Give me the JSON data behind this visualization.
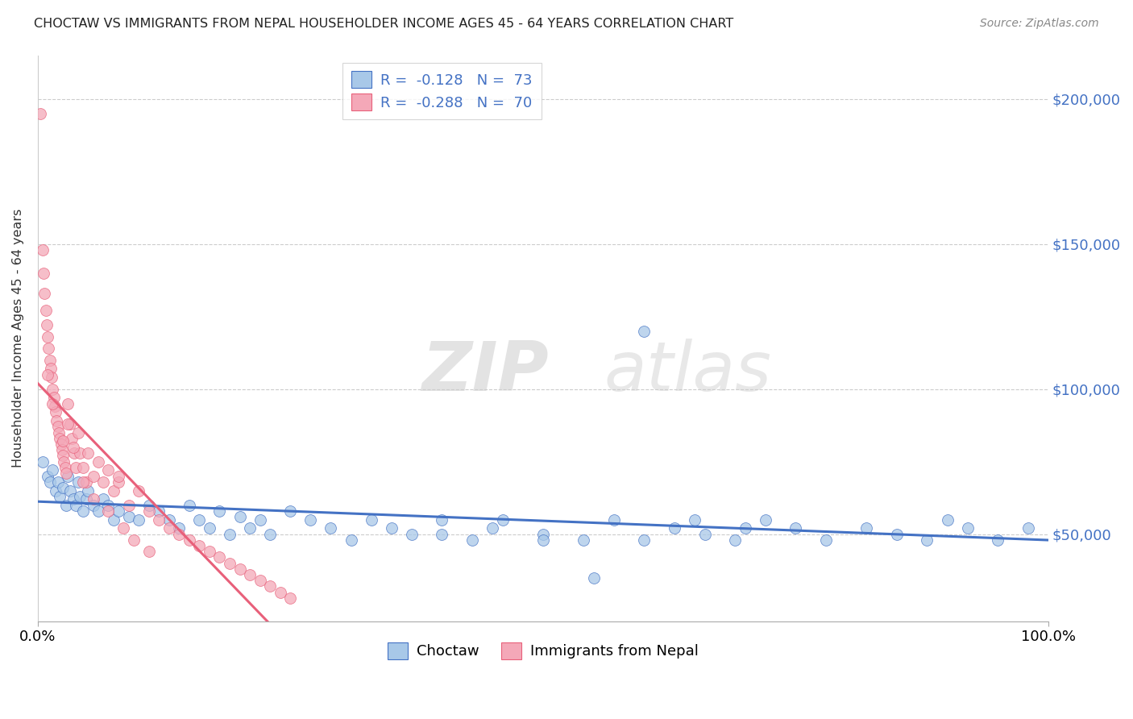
{
  "title": "CHOCTAW VS IMMIGRANTS FROM NEPAL HOUSEHOLDER INCOME AGES 45 - 64 YEARS CORRELATION CHART",
  "source": "Source: ZipAtlas.com",
  "ylabel": "Householder Income Ages 45 - 64 years",
  "legend_blue_r": "-0.128",
  "legend_blue_n": "73",
  "legend_pink_r": "-0.288",
  "legend_pink_n": "70",
  "legend_label_blue": "Choctaw",
  "legend_label_pink": "Immigrants from Nepal",
  "xlim": [
    0,
    100
  ],
  "ylim": [
    20000,
    215000
  ],
  "yticks": [
    50000,
    100000,
    150000,
    200000
  ],
  "ytick_labels": [
    "$50,000",
    "$100,000",
    "$150,000",
    "$200,000"
  ],
  "color_blue": "#A8C8E8",
  "color_pink": "#F4A8B8",
  "color_blue_line": "#4472C4",
  "color_pink_line": "#E8607A",
  "color_blue_text": "#4472C4",
  "color_ytick": "#4472C4",
  "blue_points_x": [
    0.5,
    1.0,
    1.2,
    1.5,
    1.8,
    2.0,
    2.2,
    2.5,
    2.8,
    3.0,
    3.2,
    3.5,
    3.8,
    4.0,
    4.2,
    4.5,
    4.8,
    5.0,
    5.5,
    6.0,
    6.5,
    7.0,
    7.5,
    8.0,
    9.0,
    10.0,
    11.0,
    12.0,
    13.0,
    14.0,
    15.0,
    16.0,
    17.0,
    18.0,
    19.0,
    20.0,
    21.0,
    22.0,
    23.0,
    25.0,
    27.0,
    29.0,
    31.0,
    33.0,
    35.0,
    37.0,
    40.0,
    43.0,
    46.0,
    50.0,
    54.0,
    57.0,
    60.0,
    63.0,
    66.0,
    69.0,
    72.0,
    75.0,
    78.0,
    82.0,
    85.0,
    88.0,
    90.0,
    92.0,
    95.0,
    98.0,
    60.0,
    65.0,
    70.0,
    55.0,
    50.0,
    45.0,
    40.0
  ],
  "blue_points_y": [
    75000,
    70000,
    68000,
    72000,
    65000,
    68000,
    63000,
    66000,
    60000,
    70000,
    65000,
    62000,
    60000,
    68000,
    63000,
    58000,
    62000,
    65000,
    60000,
    58000,
    62000,
    60000,
    55000,
    58000,
    56000,
    55000,
    60000,
    58000,
    55000,
    52000,
    60000,
    55000,
    52000,
    58000,
    50000,
    56000,
    52000,
    55000,
    50000,
    58000,
    55000,
    52000,
    48000,
    55000,
    52000,
    50000,
    55000,
    48000,
    55000,
    50000,
    48000,
    55000,
    48000,
    52000,
    50000,
    48000,
    55000,
    52000,
    48000,
    52000,
    50000,
    48000,
    55000,
    52000,
    48000,
    52000,
    120000,
    55000,
    52000,
    35000,
    48000,
    52000,
    50000
  ],
  "pink_points_x": [
    0.3,
    0.5,
    0.6,
    0.7,
    0.8,
    0.9,
    1.0,
    1.1,
    1.2,
    1.3,
    1.4,
    1.5,
    1.6,
    1.7,
    1.8,
    1.9,
    2.0,
    2.1,
    2.2,
    2.3,
    2.4,
    2.5,
    2.6,
    2.7,
    2.8,
    3.0,
    3.2,
    3.4,
    3.6,
    3.8,
    4.0,
    4.2,
    4.5,
    4.8,
    5.0,
    5.5,
    6.0,
    6.5,
    7.0,
    7.5,
    8.0,
    9.0,
    10.0,
    11.0,
    12.0,
    13.0,
    14.0,
    15.0,
    16.0,
    17.0,
    18.0,
    19.0,
    20.0,
    21.0,
    22.0,
    23.0,
    24.0,
    25.0,
    3.5,
    4.5,
    5.5,
    7.0,
    8.5,
    9.5,
    11.0,
    1.0,
    1.5,
    2.5,
    3.0,
    8.0
  ],
  "pink_points_y": [
    195000,
    148000,
    140000,
    133000,
    127000,
    122000,
    118000,
    114000,
    110000,
    107000,
    104000,
    100000,
    97000,
    94000,
    92000,
    89000,
    87000,
    85000,
    83000,
    81000,
    79000,
    77000,
    75000,
    73000,
    71000,
    95000,
    88000,
    83000,
    78000,
    73000,
    85000,
    78000,
    73000,
    68000,
    78000,
    70000,
    75000,
    68000,
    72000,
    65000,
    68000,
    60000,
    65000,
    58000,
    55000,
    52000,
    50000,
    48000,
    46000,
    44000,
    42000,
    40000,
    38000,
    36000,
    34000,
    32000,
    30000,
    28000,
    80000,
    68000,
    62000,
    58000,
    52000,
    48000,
    44000,
    105000,
    95000,
    82000,
    88000,
    70000
  ]
}
